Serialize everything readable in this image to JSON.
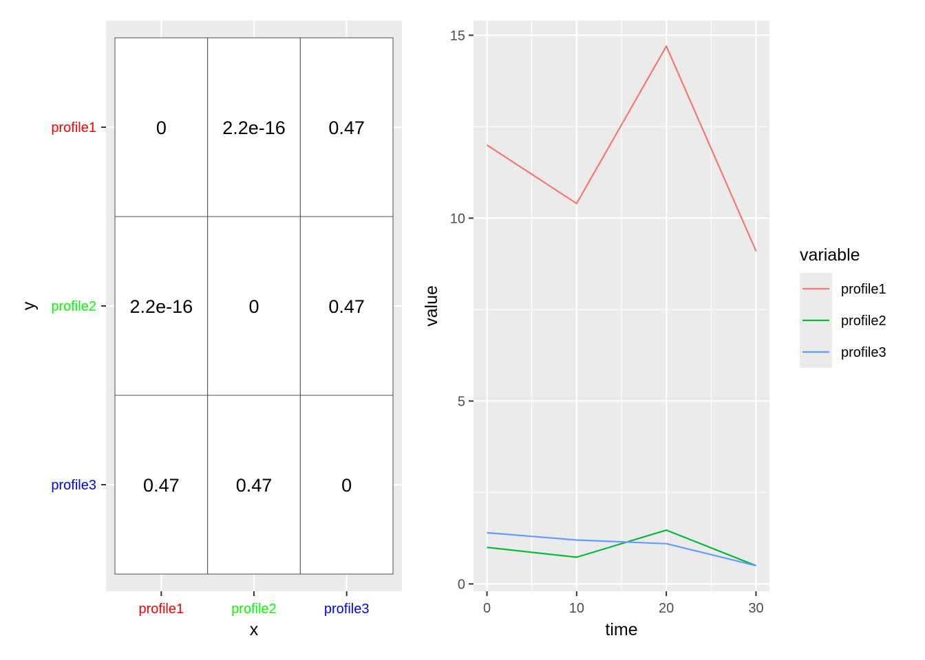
{
  "chart_data": [
    {
      "type": "heatmap",
      "xlabel": "x",
      "ylabel": "y",
      "x_categories": [
        "profile1",
        "profile2",
        "profile3"
      ],
      "y_categories": [
        "profile1",
        "profile2",
        "profile3"
      ],
      "category_colors": [
        "#ff0000",
        "#00ff00",
        "#0000ff"
      ],
      "cells": [
        [
          "0",
          "2.2e-16",
          "0.47"
        ],
        [
          "2.2e-16",
          "0",
          "0.47"
        ],
        [
          "0.47",
          "0.47",
          "0"
        ]
      ],
      "grid": true
    },
    {
      "type": "line",
      "xlabel": "time",
      "ylabel": "value",
      "x": [
        0,
        10,
        20,
        30
      ],
      "x_ticks": [
        "0",
        "10",
        "20",
        "30"
      ],
      "y_ticks": [
        "0",
        "5",
        "10",
        "15"
      ],
      "xlim": [
        -1.5,
        31.5
      ],
      "ylim": [
        -0.2,
        15.4
      ],
      "legend_title": "variable",
      "legend_position": "right",
      "grid": true,
      "series": [
        {
          "name": "profile1",
          "color": "#F8766D",
          "values": [
            12.0,
            10.4,
            14.7,
            9.1
          ]
        },
        {
          "name": "profile2",
          "color": "#00BA38",
          "values": [
            1.0,
            0.73,
            1.47,
            0.5
          ]
        },
        {
          "name": "profile3",
          "color": "#619CFF",
          "values": [
            1.4,
            1.2,
            1.1,
            0.5
          ]
        }
      ]
    }
  ]
}
